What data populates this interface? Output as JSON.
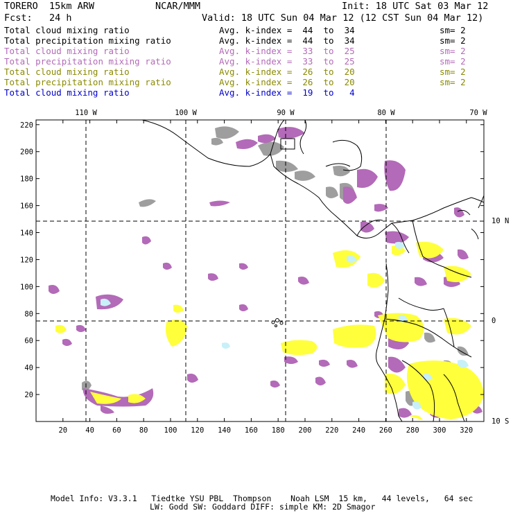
{
  "header": {
    "model": "TORERO  15km ARW",
    "org": "NCAR/MMM",
    "init": "Init: 18 UTC Sat 03 Mar 12",
    "fcst": "Fcst:   24 h",
    "valid": "Valid: 18 UTC Sun 04 Mar 12 (12 CST Sun 04 Mar 12)"
  },
  "legend": [
    {
      "field": "Total cloud mixing ratio",
      "kindex": "Avg. k-index =  44  to  34",
      "sm": "sm= 2",
      "color": "#000000"
    },
    {
      "field": "Total precipitation mixing ratio",
      "kindex": "Avg. k-index =  44  to  34",
      "sm": "sm= 2",
      "color": "#000000"
    },
    {
      "field": "Total cloud mixing ratio",
      "kindex": "Avg. k-index =  33  to  25",
      "sm": "sm= 2",
      "color": "#b36ab8"
    },
    {
      "field": "Total precipitation mixing ratio",
      "kindex": "Avg. k-index =  33  to  25",
      "sm": "sm= 2",
      "color": "#b36ab8"
    },
    {
      "field": "Total cloud mixing ratio",
      "kindex": "Avg. k-index =  26  to  20",
      "sm": "sm= 2",
      "color": "#8a8a00"
    },
    {
      "field": "Total precipitation mixing ratio",
      "kindex": "Avg. k-index =  26  to  20",
      "sm": "sm= 2",
      "color": "#8a8a00"
    },
    {
      "field": "Total cloud mixing ratio",
      "kindex": "Avg. k-index =  19  to   4",
      "sm": "",
      "color": "#0000cc"
    }
  ],
  "lon_labels": [
    "110 W",
    "100 W",
    "90 W",
    "80 W",
    "70 W"
  ],
  "lat_labels": [
    "10 N",
    "0",
    "10 S"
  ],
  "y_ticks": [
    "20",
    "40",
    "60",
    "80",
    "100",
    "120",
    "140",
    "160",
    "180",
    "200",
    "220"
  ],
  "x_ticks": [
    "20",
    "40",
    "60",
    "80",
    "100",
    "120",
    "140",
    "160",
    "180",
    "200",
    "220",
    "240",
    "260",
    "280",
    "300",
    "320"
  ],
  "footer": {
    "line1": "Model Info: V3.3.1   Tiedtke YSU PBL  Thompson    Noah LSM  15 km,   44 levels,   64 sec",
    "line2": "LW: Godd SW: Goddard DIFF: simple KM: 2D Smagor"
  },
  "colors": {
    "gray": "#9e9e9e",
    "purple": "#b36ab8",
    "yellow": "#ffff3c",
    "cyan": "#c8f0f8"
  }
}
